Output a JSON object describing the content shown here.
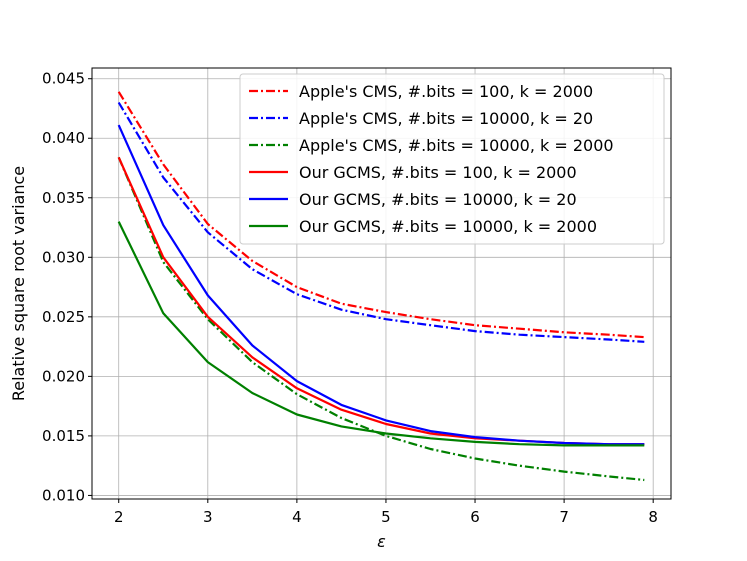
{
  "chart_data": {
    "type": "line",
    "title": "",
    "xlabel": "ε",
    "ylabel": "Relative square root variance",
    "xlim": [
      1.7,
      8.2
    ],
    "ylim": [
      0.0097,
      0.0459
    ],
    "xticks": [
      2,
      3,
      4,
      5,
      6,
      7,
      8
    ],
    "yticks": [
      0.01,
      0.015,
      0.02,
      0.025,
      0.03,
      0.035,
      0.04,
      0.045
    ],
    "grid": true,
    "legend_position": "top-right",
    "x": [
      2.0,
      2.5,
      3.0,
      3.5,
      4.0,
      4.5,
      5.0,
      5.5,
      6.0,
      6.5,
      7.0,
      7.5,
      7.9
    ],
    "series": [
      {
        "name": "Apple's CMS, #.bits = 100, k = 2000",
        "color": "#ff0000",
        "dash": "dashdot",
        "values": [
          0.0439,
          0.0378,
          0.0328,
          0.0297,
          0.0275,
          0.0261,
          0.0254,
          0.0248,
          0.0243,
          0.024,
          0.0237,
          0.0235,
          0.0233
        ]
      },
      {
        "name": "Apple's CMS, #.bits = 10000, k = 20",
        "color": "#0000ff",
        "dash": "dashdot",
        "values": [
          0.043,
          0.0367,
          0.0321,
          0.029,
          0.0269,
          0.0256,
          0.0248,
          0.0243,
          0.0238,
          0.0235,
          0.0233,
          0.0231,
          0.0229
        ]
      },
      {
        "name": "Apple's CMS, #.bits = 10000, k = 2000",
        "color": "#008000",
        "dash": "dashdot",
        "values": [
          0.0384,
          0.0296,
          0.0248,
          0.0212,
          0.0185,
          0.0165,
          0.015,
          0.0139,
          0.0131,
          0.0125,
          0.012,
          0.0116,
          0.0113
        ]
      },
      {
        "name": "Our GCMS, #.bits = 100, k = 2000",
        "color": "#ff0000",
        "dash": "solid",
        "values": [
          0.0384,
          0.03,
          0.025,
          0.0216,
          0.019,
          0.0172,
          0.016,
          0.0152,
          0.0148,
          0.0146,
          0.0144,
          0.0143,
          0.0143
        ]
      },
      {
        "name": "Our GCMS, #.bits = 10000, k = 20",
        "color": "#0000ff",
        "dash": "solid",
        "values": [
          0.0411,
          0.0327,
          0.0268,
          0.0226,
          0.0196,
          0.0176,
          0.0163,
          0.0154,
          0.0149,
          0.0146,
          0.0144,
          0.0143,
          0.0143
        ]
      },
      {
        "name": "Our GCMS, #.bits = 10000, k = 2000",
        "color": "#008000",
        "dash": "solid",
        "values": [
          0.033,
          0.0253,
          0.0212,
          0.0186,
          0.0168,
          0.0158,
          0.0152,
          0.0148,
          0.0145,
          0.0143,
          0.0142,
          0.0142,
          0.0142
        ]
      }
    ]
  }
}
